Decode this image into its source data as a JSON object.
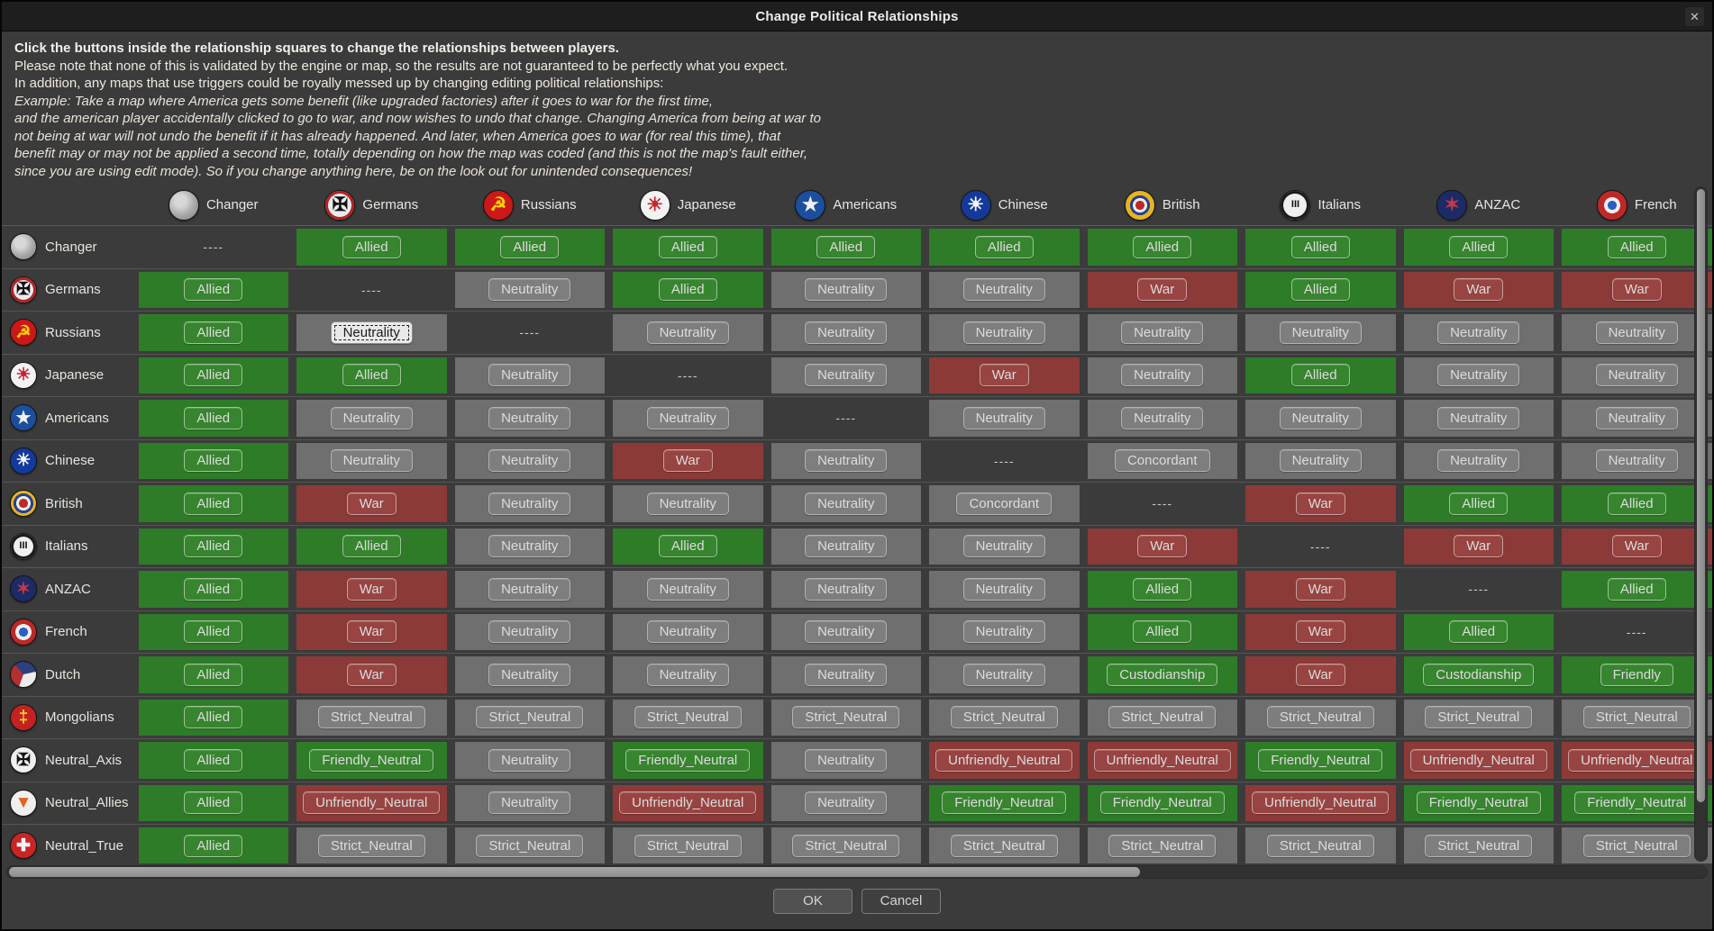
{
  "window": {
    "title": "Change Political Relationships",
    "close_glyph": "✕"
  },
  "intro": [
    {
      "text": "Click the buttons inside the relationship squares to change the relationships between players.",
      "style": "bold"
    },
    {
      "text": "Please note that none of this is validated by the engine or map, so the results are not guaranteed to be perfectly what you expect.",
      "style": "normal"
    },
    {
      "text": "In addition, any maps that use triggers could be royally messed up by changing editing political relationships:",
      "style": "normal"
    },
    {
      "text": "Example: Take a map where America gets some benefit (like upgraded factories) after it goes to war for the first time,",
      "style": "italic"
    },
    {
      "text": "and the american player accidentally clicked to go to war, and now wishes to undo that change. Changing America from being at war to",
      "style": "italic"
    },
    {
      "text": "not being at war will not undo the benefit if it has already happened. And later, when America goes to war (for real this time), that",
      "style": "italic"
    },
    {
      "text": "benefit may or may not be applied a second time, totally depending on how the map was coded (and this is not the map's fault either,",
      "style": "italic"
    },
    {
      "text": "since you are using edit mode). So if you change anything here, be on the look out for unintended consequences!",
      "style": "italic"
    }
  ],
  "players": {
    "changer": {
      "label": "Changer",
      "icon": {
        "bg": "radial-gradient(circle at 38% 35%, #d8d8d8 0 22%, #a9a9a9 55%, #7d7d7d 100%)",
        "glyph": "",
        "color": "#cccccc"
      }
    },
    "germans": {
      "label": "Germans",
      "icon": {
        "bg": "#ececec",
        "glyph": "✠",
        "color": "#111111",
        "ring": "#b52222"
      }
    },
    "russians": {
      "label": "Russians",
      "icon": {
        "bg": "#cc1818",
        "glyph": "☭",
        "color": "#ffd400"
      }
    },
    "japanese": {
      "label": "Japanese",
      "icon": {
        "bg": "#f2f2f2",
        "glyph": "☀",
        "color": "#c42430"
      }
    },
    "americans": {
      "label": "Americans",
      "icon": {
        "bg": "#1b4f9e",
        "glyph": "★",
        "color": "#f2f2f2"
      }
    },
    "chinese": {
      "label": "Chinese",
      "icon": {
        "bg": "#13399b",
        "glyph": "☀",
        "color": "#f5f5f5"
      }
    },
    "british": {
      "label": "British",
      "icon": {
        "bg": "radial-gradient(circle, #c02828 0 5px, #ececec 5px 8px, #27408f 8px 11px, #e5b51f 11px 16px)",
        "glyph": "",
        "color": "#000"
      }
    },
    "italians": {
      "label": "Italians",
      "icon": {
        "bg": "#efefef",
        "glyph": "III",
        "color": "#111111",
        "fs": "11px",
        "ring": "#1a1a1a"
      }
    },
    "anzac": {
      "label": "ANZAC",
      "icon": {
        "bg": "#1c2a66",
        "glyph": "✶",
        "color": "#c23848"
      }
    },
    "french": {
      "label": "French",
      "icon": {
        "bg": "radial-gradient(circle, #2b5fc4 0 5px, #eeeeee 5px 9px, #c02828 9px 16px)",
        "glyph": "",
        "color": "#000"
      }
    },
    "dutch": {
      "label": "Dutch",
      "icon": {
        "bg": "conic-gradient(from 200deg, #b23030 0 33%, #2e3f7d 33% 66%, #ededed 66% 100%)",
        "glyph": "",
        "color": "#000"
      }
    },
    "mongolians": {
      "label": "Mongolians",
      "icon": {
        "bg": "#c32222",
        "glyph": "‡",
        "color": "#ffce2e"
      }
    },
    "neutral_axis": {
      "label": "Neutral_Axis",
      "icon": {
        "bg": "#efefef",
        "glyph": "✠",
        "color": "#141414"
      }
    },
    "neutral_allies": {
      "label": "Neutral_Allies",
      "icon": {
        "bg": "#efefef",
        "glyph": "▼",
        "color": "#e2641e"
      }
    },
    "neutral_true": {
      "label": "Neutral_True",
      "icon": {
        "bg": "#c82525",
        "glyph": "✚",
        "color": "#f5f5f5"
      }
    }
  },
  "column_order": [
    "changer",
    "germans",
    "russians",
    "japanese",
    "americans",
    "chinese",
    "british",
    "italians",
    "anzac",
    "french"
  ],
  "row_order": [
    "changer",
    "germans",
    "russians",
    "japanese",
    "americans",
    "chinese",
    "british",
    "italians",
    "anzac",
    "french",
    "dutch",
    "mongolians",
    "neutral_axis",
    "neutral_allies",
    "neutral_true"
  ],
  "diagonal_marker": "----",
  "relationship_styles": {
    "Allied": "green",
    "War": "red",
    "Neutrality": "gray",
    "Concordant": "gray",
    "Custodianship": "green",
    "Friendly": "green",
    "Strict_Neutral": "gray",
    "Friendly_Neutral": "green",
    "Unfriendly_Neutral": "red"
  },
  "cells": {
    "changer": [
      "----",
      "Allied",
      "Allied",
      "Allied",
      "Allied",
      "Allied",
      "Allied",
      "Allied",
      "Allied",
      "Allied"
    ],
    "germans": [
      "Allied",
      "----",
      "Neutrality",
      "Allied",
      "Neutrality",
      "Neutrality",
      "War",
      "Allied",
      "War",
      "War"
    ],
    "russians": [
      "Allied",
      "Neutrality",
      "----",
      "Neutrality",
      "Neutrality",
      "Neutrality",
      "Neutrality",
      "Neutrality",
      "Neutrality",
      "Neutrality"
    ],
    "japanese": [
      "Allied",
      "Allied",
      "Neutrality",
      "----",
      "Neutrality",
      "War",
      "Neutrality",
      "Allied",
      "Neutrality",
      "Neutrality"
    ],
    "americans": [
      "Allied",
      "Neutrality",
      "Neutrality",
      "Neutrality",
      "----",
      "Neutrality",
      "Neutrality",
      "Neutrality",
      "Neutrality",
      "Neutrality"
    ],
    "chinese": [
      "Allied",
      "Neutrality",
      "Neutrality",
      "War",
      "Neutrality",
      "----",
      "Concordant",
      "Neutrality",
      "Neutrality",
      "Neutrality"
    ],
    "british": [
      "Allied",
      "War",
      "Neutrality",
      "Neutrality",
      "Neutrality",
      "Concordant",
      "----",
      "War",
      "Allied",
      "Allied"
    ],
    "italians": [
      "Allied",
      "Allied",
      "Neutrality",
      "Allied",
      "Neutrality",
      "Neutrality",
      "War",
      "----",
      "War",
      "War"
    ],
    "anzac": [
      "Allied",
      "War",
      "Neutrality",
      "Neutrality",
      "Neutrality",
      "Neutrality",
      "Allied",
      "War",
      "----",
      "Allied"
    ],
    "french": [
      "Allied",
      "War",
      "Neutrality",
      "Neutrality",
      "Neutrality",
      "Neutrality",
      "Allied",
      "War",
      "Allied",
      "----"
    ],
    "dutch": [
      "Allied",
      "War",
      "Neutrality",
      "Neutrality",
      "Neutrality",
      "Neutrality",
      "Custodianship",
      "War",
      "Custodianship",
      "Friendly"
    ],
    "mongolians": [
      "Allied",
      "Strict_Neutral",
      "Strict_Neutral",
      "Strict_Neutral",
      "Strict_Neutral",
      "Strict_Neutral",
      "Strict_Neutral",
      "Strict_Neutral",
      "Strict_Neutral",
      "Strict_Neutral"
    ],
    "neutral_axis": [
      "Allied",
      "Friendly_Neutral",
      "Neutrality",
      "Friendly_Neutral",
      "Neutrality",
      "Unfriendly_Neutral",
      "Unfriendly_Neutral",
      "Friendly_Neutral",
      "Unfriendly_Neutral",
      "Unfriendly_Neutral"
    ],
    "neutral_allies": [
      "Allied",
      "Unfriendly_Neutral",
      "Neutrality",
      "Unfriendly_Neutral",
      "Neutrality",
      "Friendly_Neutral",
      "Friendly_Neutral",
      "Unfriendly_Neutral",
      "Friendly_Neutral",
      "Friendly_Neutral"
    ],
    "neutral_true": [
      "Allied",
      "Strict_Neutral",
      "Strict_Neutral",
      "Strict_Neutral",
      "Strict_Neutral",
      "Strict_Neutral",
      "Strict_Neutral",
      "Strict_Neutral",
      "Strict_Neutral",
      "Strict_Neutral"
    ]
  },
  "focused_cell": {
    "row": "russians",
    "col": "germans"
  },
  "footer": {
    "ok": "OK",
    "cancel": "Cancel"
  },
  "colors": {
    "allied_green": "#2e7c28",
    "war_red": "#8c3a38",
    "neutral_gray": "#6f6f6f",
    "button_green": "#37852f",
    "button_red": "#984442",
    "button_gray": "#7e7e7e",
    "focused_button_bg": "#e9e9e9",
    "dialog_bg": "#3b3b3b",
    "titlebar_bg": "#1e1e1e"
  }
}
